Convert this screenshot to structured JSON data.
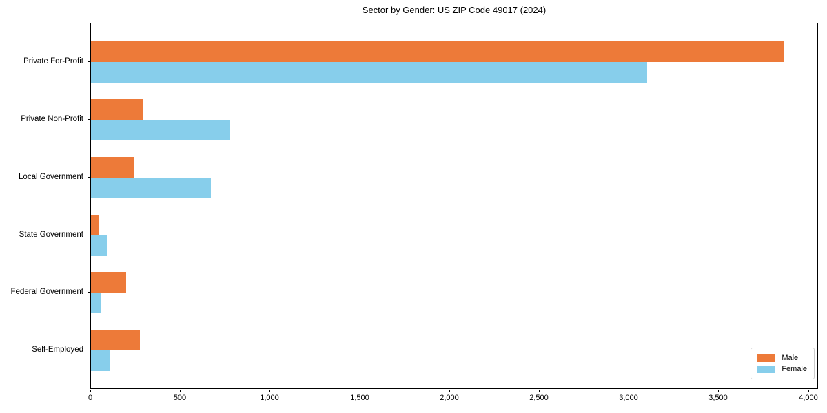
{
  "title": "Sector by Gender: US ZIP Code 49017 (2024)",
  "chart_data": {
    "type": "bar",
    "orientation": "horizontal",
    "title": "Sector by Gender: US ZIP Code 49017 (2024)",
    "xlabel": "",
    "ylabel": "",
    "categories": [
      "Private For-Profit",
      "Private Non-Profit",
      "Local Government",
      "State Government",
      "Federal Government",
      "Self-Employed"
    ],
    "series": [
      {
        "name": "Male",
        "color": "#ED7A39",
        "values": [
          3860,
          290,
          238,
          42,
          196,
          273
        ]
      },
      {
        "name": "Female",
        "color": "#87CEEB",
        "values": [
          3100,
          775,
          668,
          90,
          54,
          106
        ]
      }
    ],
    "xlim": [
      0,
      4055
    ],
    "x_ticks": [
      0,
      500,
      1000,
      1500,
      2000,
      2500,
      3000,
      3500,
      4000
    ],
    "x_tick_labels": [
      "0",
      "500",
      "1,000",
      "1,500",
      "2,000",
      "2,500",
      "3,000",
      "3,500",
      "4,000"
    ],
    "grid": false,
    "legend": {
      "position": "lower right",
      "entries": [
        "Male",
        "Female"
      ]
    }
  }
}
